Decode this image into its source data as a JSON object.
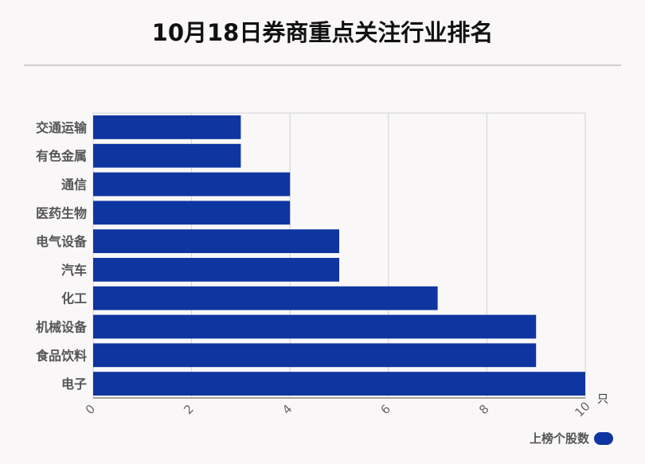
{
  "chart_data": {
    "type": "bar",
    "orientation": "horizontal",
    "title": "10月18日券商重点关注行业排名",
    "categories": [
      "交通运输",
      "有色金属",
      "通信",
      "医药生物",
      "电气设备",
      "汽车",
      "化工",
      "机械设备",
      "食品饮料",
      "电子"
    ],
    "series": [
      {
        "name": "上榜个股数",
        "values": [
          3,
          3,
          4,
          4,
          5,
          5,
          7,
          9,
          9,
          10
        ]
      }
    ],
    "xticks": [
      0,
      2,
      4,
      6,
      8,
      10
    ],
    "xlim": [
      0,
      10
    ],
    "xunit": "只",
    "grid": true,
    "legend": "bottom-right",
    "bar_color": "#0f35a0"
  }
}
